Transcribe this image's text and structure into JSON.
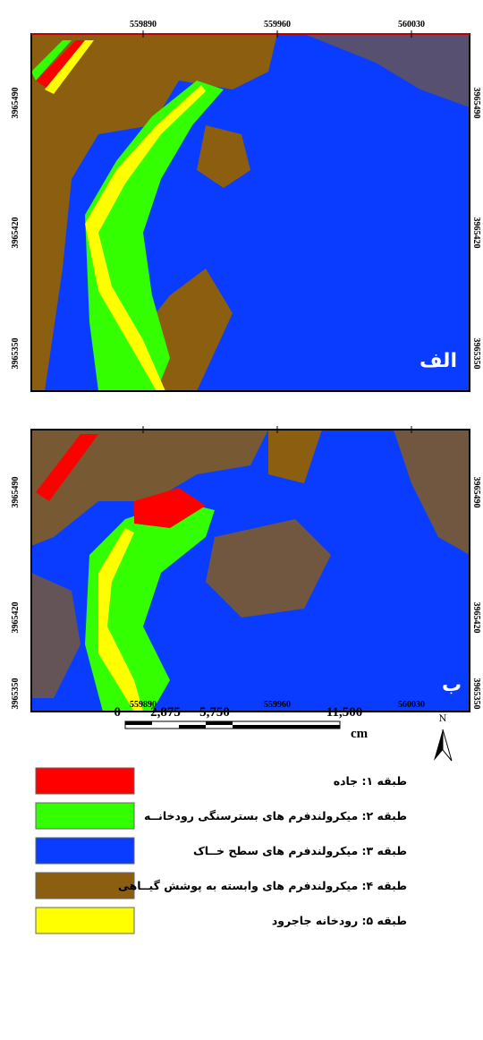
{
  "top_panel": {
    "label": "الف",
    "x_labels": [
      "559890",
      "559960",
      "560030"
    ],
    "y_labels": [
      "3965490",
      "3965420",
      "3965350"
    ]
  },
  "bottom_panel": {
    "label": "ب",
    "x_labels": [
      "559890",
      "559960",
      "560030"
    ],
    "y_labels": [
      "3965490",
      "3965420",
      "3965350"
    ]
  },
  "scale_bar": {
    "labels": [
      "0",
      "2,875",
      "5,750",
      "11,500"
    ],
    "unit": "cm"
  },
  "north": "N",
  "legend": [
    {
      "label": "طبقه ۱: جاده",
      "color": "#ff0000"
    },
    {
      "label": "طبقه ۲: میکرولندفرم های بسترسنگی رودخانــه",
      "color": "#33ff00"
    },
    {
      "label": "طبقه ۳: میکرولندفرم های سطح خــاک",
      "color": "#0a3cff"
    },
    {
      "label": "طبقه ۴: میکرولندفرم های وابسته به پوشش گیــاهی",
      "color": "#8b5e10"
    },
    {
      "label": "طبقه ۵: رودخانه جاجرود",
      "color": "#ffff00"
    }
  ]
}
